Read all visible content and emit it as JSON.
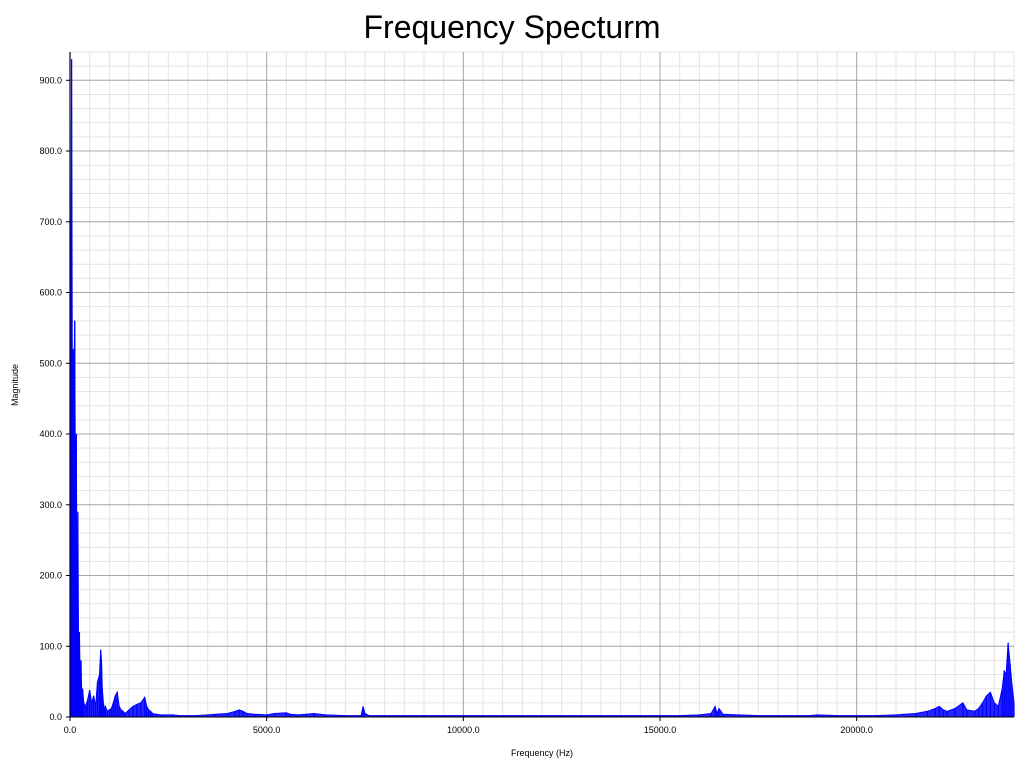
{
  "chart_data": {
    "type": "line",
    "title": "Frequency Specturm",
    "xlabel": "Frequency (Hz)",
    "ylabel": "Magnitude",
    "xlim": [
      0,
      24000
    ],
    "ylim": [
      0,
      940
    ],
    "grid": true,
    "x_ticks": [
      {
        "value": 0,
        "label": "0.0"
      },
      {
        "value": 5000,
        "label": "5000.0"
      },
      {
        "value": 10000,
        "label": "10000.0"
      },
      {
        "value": 15000,
        "label": "15000.0"
      },
      {
        "value": 20000,
        "label": "20000.0"
      }
    ],
    "y_ticks": [
      {
        "value": 0,
        "label": "0.0"
      },
      {
        "value": 100,
        "label": "100.0"
      },
      {
        "value": 200,
        "label": "200.0"
      },
      {
        "value": 300,
        "label": "300.0"
      },
      {
        "value": 400,
        "label": "400.0"
      },
      {
        "value": 500,
        "label": "500.0"
      },
      {
        "value": 600,
        "label": "600.0"
      },
      {
        "value": 700,
        "label": "700.0"
      },
      {
        "value": 800,
        "label": "800.0"
      },
      {
        "value": 900,
        "label": "900.0"
      }
    ],
    "series": [
      {
        "color": "#0000ff",
        "x": [
          0,
          20,
          40,
          60,
          80,
          100,
          120,
          140,
          160,
          180,
          200,
          220,
          240,
          260,
          280,
          300,
          320,
          350,
          400,
          450,
          500,
          550,
          600,
          650,
          700,
          750,
          780,
          800,
          820,
          850,
          880,
          900,
          950,
          1000,
          1050,
          1100,
          1150,
          1200,
          1250,
          1300,
          1350,
          1400,
          1500,
          1600,
          1700,
          1800,
          1900,
          1950,
          2000,
          2050,
          2100,
          2200,
          2300,
          2400,
          2600,
          2800,
          3000,
          3200,
          3500,
          3700,
          4000,
          4200,
          4300,
          4400,
          4500,
          4700,
          5000,
          5200,
          5500,
          5600,
          5800,
          6000,
          6200,
          6500,
          7000,
          7400,
          7450,
          7500,
          7600,
          8000,
          8500,
          9000,
          9500,
          10000,
          10500,
          11000,
          11500,
          12000,
          12500,
          13000,
          13500,
          14000,
          14500,
          15000,
          15500,
          16000,
          16300,
          16400,
          16450,
          16500,
          16600,
          17000,
          17500,
          18000,
          18500,
          18800,
          19000,
          19500,
          20000,
          20500,
          21000,
          21500,
          21800,
          22000,
          22100,
          22200,
          22300,
          22500,
          22700,
          22800,
          23000,
          23100,
          23200,
          23300,
          23400,
          23500,
          23600,
          23700,
          23750,
          23800,
          23850,
          23900,
          23950,
          24000
        ],
        "y": [
          940,
          240,
          930,
          450,
          520,
          480,
          560,
          300,
          400,
          150,
          290,
          60,
          120,
          50,
          80,
          30,
          40,
          20,
          15,
          25,
          38,
          20,
          30,
          15,
          50,
          60,
          95,
          80,
          40,
          20,
          10,
          15,
          8,
          10,
          12,
          20,
          30,
          35,
          15,
          10,
          8,
          5,
          10,
          15,
          18,
          20,
          28,
          15,
          10,
          8,
          5,
          4,
          3,
          3,
          3,
          2,
          2,
          2,
          3,
          4,
          5,
          8,
          10,
          8,
          5,
          4,
          3,
          5,
          6,
          4,
          3,
          4,
          5,
          3,
          2,
          2,
          15,
          5,
          2,
          2,
          2,
          2,
          2,
          2,
          2,
          2,
          2,
          2,
          2,
          2,
          2,
          2,
          2,
          2,
          2,
          3,
          5,
          15,
          5,
          12,
          4,
          3,
          2,
          2,
          2,
          2,
          3,
          2,
          2,
          2,
          3,
          5,
          8,
          12,
          15,
          10,
          8,
          12,
          20,
          10,
          8,
          12,
          20,
          30,
          35,
          20,
          15,
          40,
          65,
          60,
          105,
          75,
          45,
          20
        ]
      }
    ]
  }
}
